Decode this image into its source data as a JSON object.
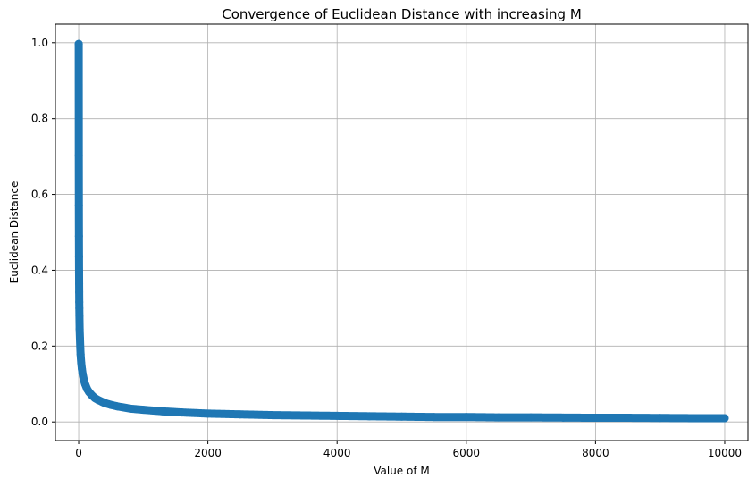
{
  "chart_data": {
    "type": "line",
    "title": "Convergence of Euclidean Distance with increasing M",
    "xlabel": "Value of M",
    "ylabel": "Euclidean Distance",
    "xlim": [
      -360,
      10360
    ],
    "ylim": [
      -0.049,
      1.049
    ],
    "xticks": [
      0,
      2000,
      4000,
      6000,
      8000,
      10000
    ],
    "xtick_labels": [
      "0",
      "2000",
      "4000",
      "6000",
      "8000",
      "10000"
    ],
    "yticks": [
      0.0,
      0.2,
      0.4,
      0.6,
      0.8,
      1.0
    ],
    "ytick_labels": [
      "0.0",
      "0.2",
      "0.4",
      "0.6",
      "0.8",
      "1.0"
    ],
    "grid": true,
    "marker": "circle",
    "series_color": "#1f77b4",
    "series": [
      {
        "name": "",
        "x": [
          1,
          2,
          3,
          4,
          5,
          6,
          7,
          8,
          9,
          10,
          12,
          15,
          20,
          25,
          30,
          40,
          50,
          60,
          80,
          100,
          130,
          160,
          200,
          250,
          300,
          400,
          500,
          600,
          800,
          1000,
          1300,
          1600,
          2000,
          2500,
          3000,
          3500,
          4000,
          4500,
          5000,
          5500,
          6000,
          6500,
          7000,
          7500,
          8000,
          8500,
          9000,
          9500,
          10000
        ],
        "y": [
          0.997,
          0.703,
          0.571,
          0.49,
          0.436,
          0.396,
          0.365,
          0.342,
          0.316,
          0.3,
          0.28,
          0.245,
          0.22,
          0.195,
          0.178,
          0.155,
          0.14,
          0.128,
          0.111,
          0.1,
          0.087,
          0.079,
          0.071,
          0.063,
          0.058,
          0.05,
          0.045,
          0.041,
          0.035,
          0.032,
          0.028,
          0.025,
          0.022,
          0.02,
          0.018,
          0.017,
          0.016,
          0.015,
          0.014,
          0.013,
          0.013,
          0.012,
          0.012,
          0.0115,
          0.011,
          0.011,
          0.0105,
          0.01,
          0.01
        ]
      }
    ]
  }
}
